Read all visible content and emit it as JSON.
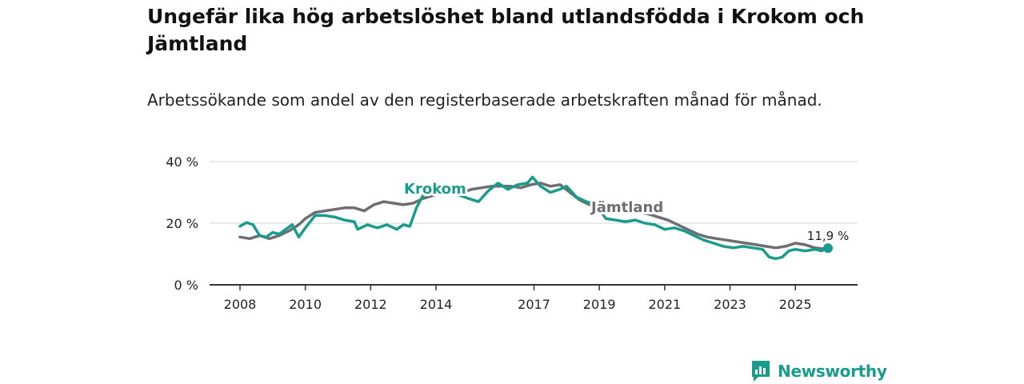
{
  "header": {
    "title": "Ungefär lika hög arbetslöshet bland utlandsfödda i Krokom och Jämtland",
    "subtitle": "Arbetssökande som andel av den registerbaserade arbetskraften månad för månad."
  },
  "brand": {
    "name": "Newsworthy"
  },
  "colors": {
    "krokom": "#1a9c8c",
    "jamtland": "#6e6e72",
    "grid": "#d4d4d4",
    "axis": "#333333"
  },
  "chart_data": {
    "type": "line",
    "title": "Ungefär lika hög arbetslöshet bland utlandsfödda i Krokom och Jämtland",
    "xlabel": "",
    "ylabel": "",
    "ylim": [
      0,
      40
    ],
    "xlim": [
      2008,
      2026
    ],
    "y_ticks": [
      0,
      20,
      40
    ],
    "y_tick_labels": [
      "0 %",
      "20 %",
      "40 %"
    ],
    "x_ticks": [
      2008,
      2010,
      2012,
      2014,
      2017,
      2019,
      2021,
      2023,
      2025
    ],
    "x_tick_labels": [
      "2008",
      "2010",
      "2012",
      "2014",
      "2017",
      "2019",
      "2021",
      "2023",
      "2025"
    ],
    "grid": true,
    "end_label": "11,9 %",
    "series": [
      {
        "name": "Krokom",
        "color": "#1a9c8c",
        "x": [
          2008.0,
          2008.2,
          2008.4,
          2008.6,
          2008.8,
          2009.0,
          2009.2,
          2009.4,
          2009.6,
          2009.8,
          2010.0,
          2010.3,
          2010.6,
          2010.9,
          2011.2,
          2011.5,
          2011.6,
          2011.9,
          2012.2,
          2012.5,
          2012.8,
          2013.0,
          2013.2,
          2013.4,
          2013.6,
          2013.8,
          2014.0,
          2014.5,
          2015.0,
          2015.3,
          2015.6,
          2015.9,
          2016.2,
          2016.5,
          2016.8,
          2016.95,
          2017.2,
          2017.5,
          2017.8,
          2018.0,
          2018.3,
          2018.6,
          2018.9,
          2019.2,
          2019.5,
          2019.8,
          2020.1,
          2020.4,
          2020.7,
          2021.0,
          2021.3,
          2021.6,
          2021.9,
          2022.2,
          2022.5,
          2022.8,
          2023.1,
          2023.4,
          2023.7,
          2024.0,
          2024.2,
          2024.4,
          2024.6,
          2024.8,
          2025.0,
          2025.3,
          2025.6,
          2025.8,
          2026.0
        ],
        "values": [
          19.0,
          20.2,
          19.5,
          16.0,
          15.5,
          17.0,
          16.5,
          18.0,
          19.5,
          15.5,
          18.5,
          22.5,
          22.5,
          22.0,
          21.0,
          20.5,
          18.0,
          19.5,
          18.5,
          19.5,
          18.0,
          19.5,
          19.0,
          25.0,
          29.0,
          30.0,
          30.5,
          30.0,
          28.0,
          27.0,
          30.5,
          33.0,
          31.0,
          32.5,
          33.0,
          35.0,
          32.0,
          30.0,
          31.0,
          32.0,
          28.5,
          27.0,
          26.0,
          21.5,
          21.0,
          20.5,
          21.0,
          20.0,
          19.5,
          18.0,
          18.5,
          17.5,
          16.0,
          14.5,
          13.5,
          12.5,
          12.0,
          12.5,
          12.0,
          11.5,
          9.0,
          8.5,
          9.0,
          11.0,
          11.5,
          11.0,
          11.5,
          11.0,
          11.9
        ]
      },
      {
        "name": "Jämtland",
        "color": "#6e6e72",
        "x": [
          2008.0,
          2008.3,
          2008.6,
          2008.9,
          2009.2,
          2009.5,
          2009.8,
          2010.0,
          2010.3,
          2010.6,
          2010.9,
          2011.2,
          2011.5,
          2011.8,
          2012.1,
          2012.4,
          2012.7,
          2013.0,
          2013.3,
          2013.6,
          2013.9,
          2014.2,
          2014.5,
          2014.8,
          2015.1,
          2015.4,
          2015.7,
          2016.0,
          2016.3,
          2016.6,
          2016.9,
          2017.2,
          2017.5,
          2017.8,
          2018.1,
          2018.4,
          2018.7,
          2019.0,
          2019.3,
          2019.6,
          2019.9,
          2020.2,
          2020.5,
          2020.8,
          2021.1,
          2021.4,
          2021.7,
          2022.0,
          2022.3,
          2022.6,
          2022.9,
          2023.2,
          2023.5,
          2023.8,
          2024.1,
          2024.4,
          2024.7,
          2025.0,
          2025.3,
          2025.6,
          2026.0
        ],
        "values": [
          15.5,
          15.0,
          16.0,
          15.0,
          16.0,
          17.5,
          19.5,
          21.5,
          23.5,
          24.0,
          24.5,
          25.0,
          25.0,
          24.0,
          26.0,
          27.0,
          26.5,
          26.0,
          26.5,
          28.0,
          29.0,
          30.0,
          30.5,
          30.0,
          31.0,
          31.5,
          32.0,
          32.0,
          32.0,
          31.5,
          32.5,
          33.0,
          32.0,
          32.5,
          30.0,
          27.5,
          26.0,
          25.5,
          25.0,
          24.5,
          24.0,
          23.5,
          23.0,
          22.0,
          21.0,
          19.5,
          18.0,
          16.5,
          15.5,
          15.0,
          14.5,
          14.0,
          13.5,
          13.0,
          12.5,
          12.0,
          12.5,
          13.5,
          13.0,
          12.0,
          11.5
        ]
      }
    ]
  }
}
